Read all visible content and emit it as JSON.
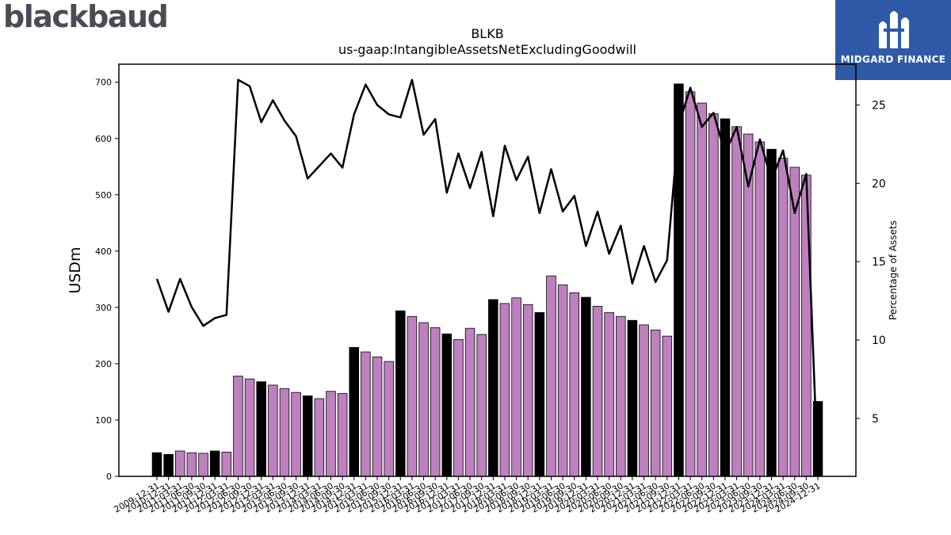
{
  "brand": {
    "logo_text": "blackbaud"
  },
  "badge": {
    "text": "MIDGARD FINANCE"
  },
  "colors": {
    "bar_purple": "#bf80bf",
    "bar_black": "#000000",
    "line": "#000000",
    "badge_bg": "#2e5aa8"
  },
  "chart_data": {
    "type": "bar",
    "title": "BLKB",
    "subtitle": "us-gaap:IntangibleAssetsNetExcludingGoodwill",
    "ylabel": "USDm",
    "y2label": "Percentage of Assets",
    "ylim": [
      0,
      732
    ],
    "y2lim": [
      1.3,
      27.6
    ],
    "yticks": [
      0,
      100,
      200,
      300,
      400,
      500,
      600,
      700
    ],
    "y2ticks": [
      5,
      10,
      15,
      20,
      25
    ],
    "categories": [
      "2009-12-31",
      "2010-12-31",
      "2011-03-31",
      "2011-06-30",
      "2011-09-30",
      "2011-12-31",
      "2012-03-31",
      "2012-06-30",
      "2012-09-30",
      "2012-12-31",
      "2013-03-31",
      "2013-06-30",
      "2013-09-30",
      "2013-12-31",
      "2014-03-31",
      "2014-06-30",
      "2014-09-30",
      "2014-12-31",
      "2015-03-31",
      "2015-06-30",
      "2015-09-30",
      "2015-12-31",
      "2016-03-31",
      "2016-06-30",
      "2016-09-30",
      "2016-12-31",
      "2017-03-31",
      "2017-06-30",
      "2017-09-30",
      "2017-12-31",
      "2018-03-31",
      "2018-06-30",
      "2018-09-30",
      "2018-12-31",
      "2019-03-31",
      "2019-06-30",
      "2019-09-30",
      "2019-12-31",
      "2020-03-31",
      "2020-06-30",
      "2020-09-30",
      "2020-12-31",
      "2021-03-31",
      "2021-06-30",
      "2021-09-30",
      "2021-12-31",
      "2022-03-31",
      "2022-06-30",
      "2022-09-30",
      "2022-12-31",
      "2023-03-31",
      "2023-06-30",
      "2023-09-30",
      "2023-12-31",
      "2024-03-31",
      "2024-06-30",
      "2024-09-30",
      "2024-12-31"
    ],
    "series": [
      {
        "type": "bar",
        "axis": "left",
        "values": [
          42,
          39,
          45,
          42,
          41,
          45,
          43,
          178,
          173,
          168,
          162,
          156,
          149,
          143,
          138,
          151,
          147,
          229,
          221,
          212,
          204,
          294,
          284,
          273,
          264,
          253,
          243,
          263,
          252,
          314,
          307,
          317,
          305,
          291,
          356,
          340,
          326,
          318,
          302,
          291,
          284,
          277,
          269,
          260,
          249,
          697,
          683,
          663,
          644,
          635,
          621,
          608,
          594,
          581,
          565,
          549,
          535,
          133
        ],
        "highlight_yearend": [
          true,
          true,
          false,
          false,
          false,
          true,
          false,
          false,
          false,
          true,
          false,
          false,
          false,
          true,
          false,
          false,
          false,
          true,
          false,
          false,
          false,
          true,
          false,
          false,
          false,
          true,
          false,
          false,
          false,
          true,
          false,
          false,
          false,
          true,
          false,
          false,
          false,
          true,
          false,
          false,
          false,
          true,
          false,
          false,
          false,
          true,
          false,
          false,
          false,
          true,
          false,
          false,
          false,
          true,
          false,
          false,
          false,
          true
        ]
      },
      {
        "type": "line",
        "axis": "right",
        "values": [
          13.9,
          11.8,
          13.9,
          12.1,
          10.9,
          11.4,
          11.6,
          26.6,
          26.2,
          23.9,
          25.3,
          24.0,
          23.0,
          20.3,
          21.1,
          21.9,
          21.0,
          24.4,
          26.3,
          25.0,
          24.4,
          24.2,
          26.6,
          23.1,
          24.1,
          19.4,
          21.9,
          19.7,
          22.0,
          17.9,
          22.4,
          20.2,
          21.7,
          18.1,
          20.9,
          18.2,
          19.2,
          16.0,
          18.2,
          15.5,
          17.3,
          13.6,
          16.0,
          13.7,
          15.1,
          23.7,
          26.1,
          23.6,
          24.5,
          21.9,
          23.6,
          19.8,
          22.8,
          20.2,
          22.1,
          18.1,
          20.6,
          1.5
        ]
      }
    ]
  }
}
